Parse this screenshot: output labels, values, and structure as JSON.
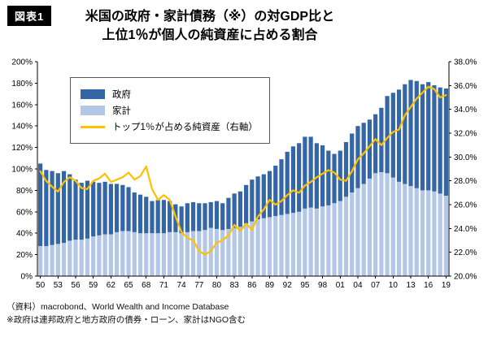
{
  "figure_label": "図表1",
  "title_line1": "米国の政府・家計債務（※）の対GDP比と",
  "title_line2": "上位1％が個人の純資産に占める割合",
  "legend": {
    "gov": "政府",
    "household": "家計",
    "top1": "トップ1％が占める純資産（右軸）"
  },
  "colors": {
    "gov": "#3465a4",
    "household": "#b4c7e7",
    "top1": "#ffc000",
    "axis": "#000000"
  },
  "footer_line1": "（資料）macrobond、World Wealth and Income Database",
  "footer_line2": "※政府は連邦政府と地方政府の債券・ローン、家計はNGO含む",
  "chart_data": {
    "type": "bar+line",
    "title": "米国の政府・家計債務の対GDP比と上位1％が個人の純資産に占める割合",
    "x": [
      1950,
      1951,
      1952,
      1953,
      1954,
      1955,
      1956,
      1957,
      1958,
      1959,
      1960,
      1961,
      1962,
      1963,
      1964,
      1965,
      1966,
      1967,
      1968,
      1969,
      1970,
      1971,
      1972,
      1973,
      1974,
      1975,
      1976,
      1977,
      1978,
      1979,
      1980,
      1981,
      1982,
      1983,
      1984,
      1985,
      1986,
      1987,
      1988,
      1989,
      1990,
      1991,
      1992,
      1993,
      1994,
      1995,
      1996,
      1997,
      1998,
      1999,
      2000,
      2001,
      2002,
      2003,
      2004,
      2005,
      2006,
      2007,
      2008,
      2009,
      2010,
      2011,
      2012,
      2013,
      2014,
      2015,
      2016,
      2017,
      2018,
      2019
    ],
    "x_tick_labels": [
      "50",
      "53",
      "56",
      "59",
      "62",
      "65",
      "68",
      "71",
      "74",
      "77",
      "80",
      "83",
      "86",
      "89",
      "92",
      "95",
      "98",
      "01",
      "04",
      "07",
      "10",
      "13",
      "16",
      "19"
    ],
    "series": [
      {
        "name": "政府",
        "type": "bar",
        "stack": "debt",
        "axis": "left",
        "position": "top",
        "values": [
          77,
          71,
          69,
          66,
          67,
          62,
          56,
          53,
          54,
          51,
          49,
          49,
          47,
          45,
          43,
          41,
          37,
          36,
          34,
          30,
          31,
          31,
          29,
          26,
          25,
          27,
          27,
          26,
          25,
          24,
          26,
          25,
          29,
          32,
          33,
          36,
          39,
          40,
          41,
          43,
          47,
          52,
          58,
          62,
          64,
          67,
          66,
          61,
          57,
          51,
          46,
          47,
          51,
          55,
          58,
          57,
          55,
          55,
          60,
          72,
          79,
          86,
          93,
          99,
          100,
          99,
          101,
          99,
          99,
          100
        ]
      },
      {
        "name": "家計",
        "type": "bar",
        "stack": "debt",
        "axis": "left",
        "position": "bottom",
        "values": [
          28,
          28,
          29,
          30,
          31,
          33,
          34,
          34,
          35,
          37,
          38,
          39,
          39,
          41,
          42,
          42,
          41,
          40,
          40,
          40,
          40,
          40,
          41,
          41,
          40,
          41,
          42,
          42,
          43,
          45,
          44,
          43,
          44,
          45,
          46,
          49,
          51,
          53,
          54,
          55,
          56,
          57,
          58,
          59,
          60,
          63,
          64,
          63,
          65,
          66,
          68,
          70,
          74,
          78,
          82,
          86,
          91,
          96,
          97,
          96,
          92,
          88,
          86,
          84,
          82,
          80,
          80,
          79,
          77,
          75
        ]
      },
      {
        "name": "トップ1％が占める純資産（右軸）",
        "type": "line",
        "axis": "right",
        "values": [
          28.8,
          28.0,
          27.5,
          27.1,
          27.9,
          28.3,
          28.0,
          27.4,
          27.3,
          28.0,
          28.2,
          28.6,
          27.9,
          28.1,
          28.3,
          28.7,
          28.1,
          28.4,
          29.2,
          27.3,
          26.4,
          26.8,
          26.4,
          25.0,
          23.7,
          23.2,
          23.0,
          22.1,
          21.8,
          22.1,
          22.8,
          23.0,
          23.4,
          24.3,
          23.8,
          24.4,
          23.9,
          25.0,
          25.6,
          26.4,
          26.0,
          26.3,
          26.8,
          27.2,
          27.0,
          27.6,
          27.9,
          28.3,
          28.6,
          28.9,
          28.7,
          28.1,
          28.0,
          28.8,
          29.8,
          30.3,
          30.9,
          31.5,
          31.0,
          31.6,
          32.1,
          32.3,
          33.5,
          34.2,
          34.9,
          35.4,
          35.9,
          35.7,
          35.0,
          35.2
        ]
      }
    ],
    "left_axis": {
      "min": 0,
      "max": 200,
      "step": 20,
      "tick_labels": [
        "0%",
        "20%",
        "40%",
        "60%",
        "80%",
        "100%",
        "120%",
        "140%",
        "160%",
        "180%",
        "200%"
      ]
    },
    "right_axis": {
      "min": 20,
      "max": 38,
      "step": 2,
      "tick_labels": [
        "20.0%",
        "22.0%",
        "24.0%",
        "26.0%",
        "28.0%",
        "30.0%",
        "32.0%",
        "34.0%",
        "36.0%",
        "38.0%"
      ]
    },
    "grid": false,
    "legend_position": "inside-top-left"
  }
}
